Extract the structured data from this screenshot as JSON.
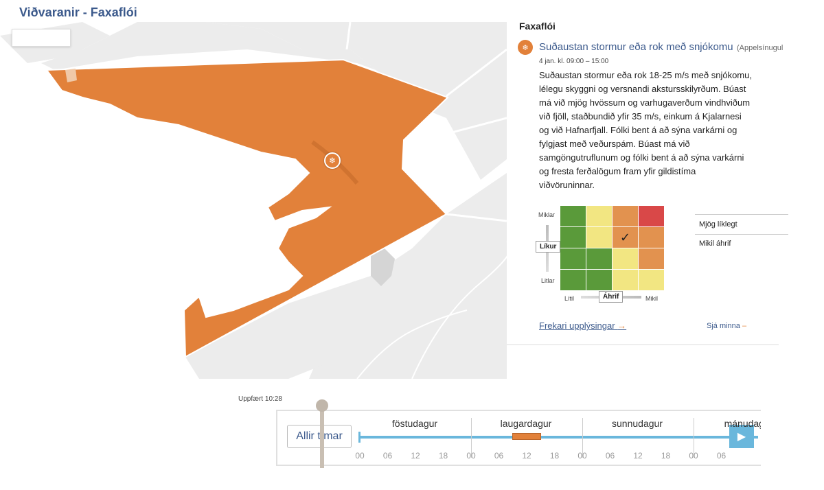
{
  "page": {
    "title": "Viðvaranir - Faxaflói"
  },
  "map": {
    "marker_icon": "snow-wind-icon",
    "region_color": "#e2813a",
    "land_color": "#ececec"
  },
  "panel": {
    "region": "Faxaflói",
    "warning": {
      "title": "Suðaustan stormur eða rok með snjókomu",
      "color_name": "(Appelsínugul",
      "time": "4 jan. kl. 09:00 – 15:00",
      "description": "Suðaustan stormur eða rok 18-25 m/s með snjókomu, lélegu skyggni og versnandi akstursskilyrðum. Búast má við mjög hvössum og varhugaverðum vindhviðum við fjöll, staðbundið yfir 35 m/s, einkum á Kjalarnesi og við Hafnarfjall. Fólki bent á að sýna varkárni og fylgjast með veðurspám. Búast má við samgöngutruflunum og fólki bent á að sýna varkárni og fresta ferðalögum fram yfir gildistíma viðvöruninnar."
    },
    "matrix": {
      "likelihood_label": "Líkur",
      "likelihood_high": "Miklar",
      "likelihood_low": "Litlar",
      "impact_label": "Áhrif",
      "impact_low": "Lítil",
      "impact_high": "Mikil",
      "selected_likelihood": "Mjög líklegt",
      "selected_impact": "Mikil áhrif",
      "check": "✓",
      "colors": {
        "green": "#5a9a3a",
        "yellow": "#f2e682",
        "orange": "#e2924f",
        "red": "#d94848"
      },
      "rows": [
        [
          "green",
          "yellow",
          "orange",
          "red"
        ],
        [
          "green",
          "yellow",
          "orange",
          "orange"
        ],
        [
          "green",
          "green",
          "yellow",
          "orange"
        ],
        [
          "green",
          "green",
          "yellow",
          "yellow"
        ]
      ],
      "selected": {
        "row": 1,
        "col": 2
      }
    },
    "more_link": "Frekari upplýsingar",
    "more_arrow": "→",
    "less_link": "Sjá minna",
    "less_dash": "–"
  },
  "timeline": {
    "updated": "Uppfært 10:28",
    "all_times": "Allir tímar",
    "days": [
      "föstudagur",
      "laugardagur",
      "sunnudagur",
      "mánudagur"
    ],
    "hours": [
      "00",
      "06",
      "12",
      "18"
    ],
    "play_icon": "play-icon"
  }
}
